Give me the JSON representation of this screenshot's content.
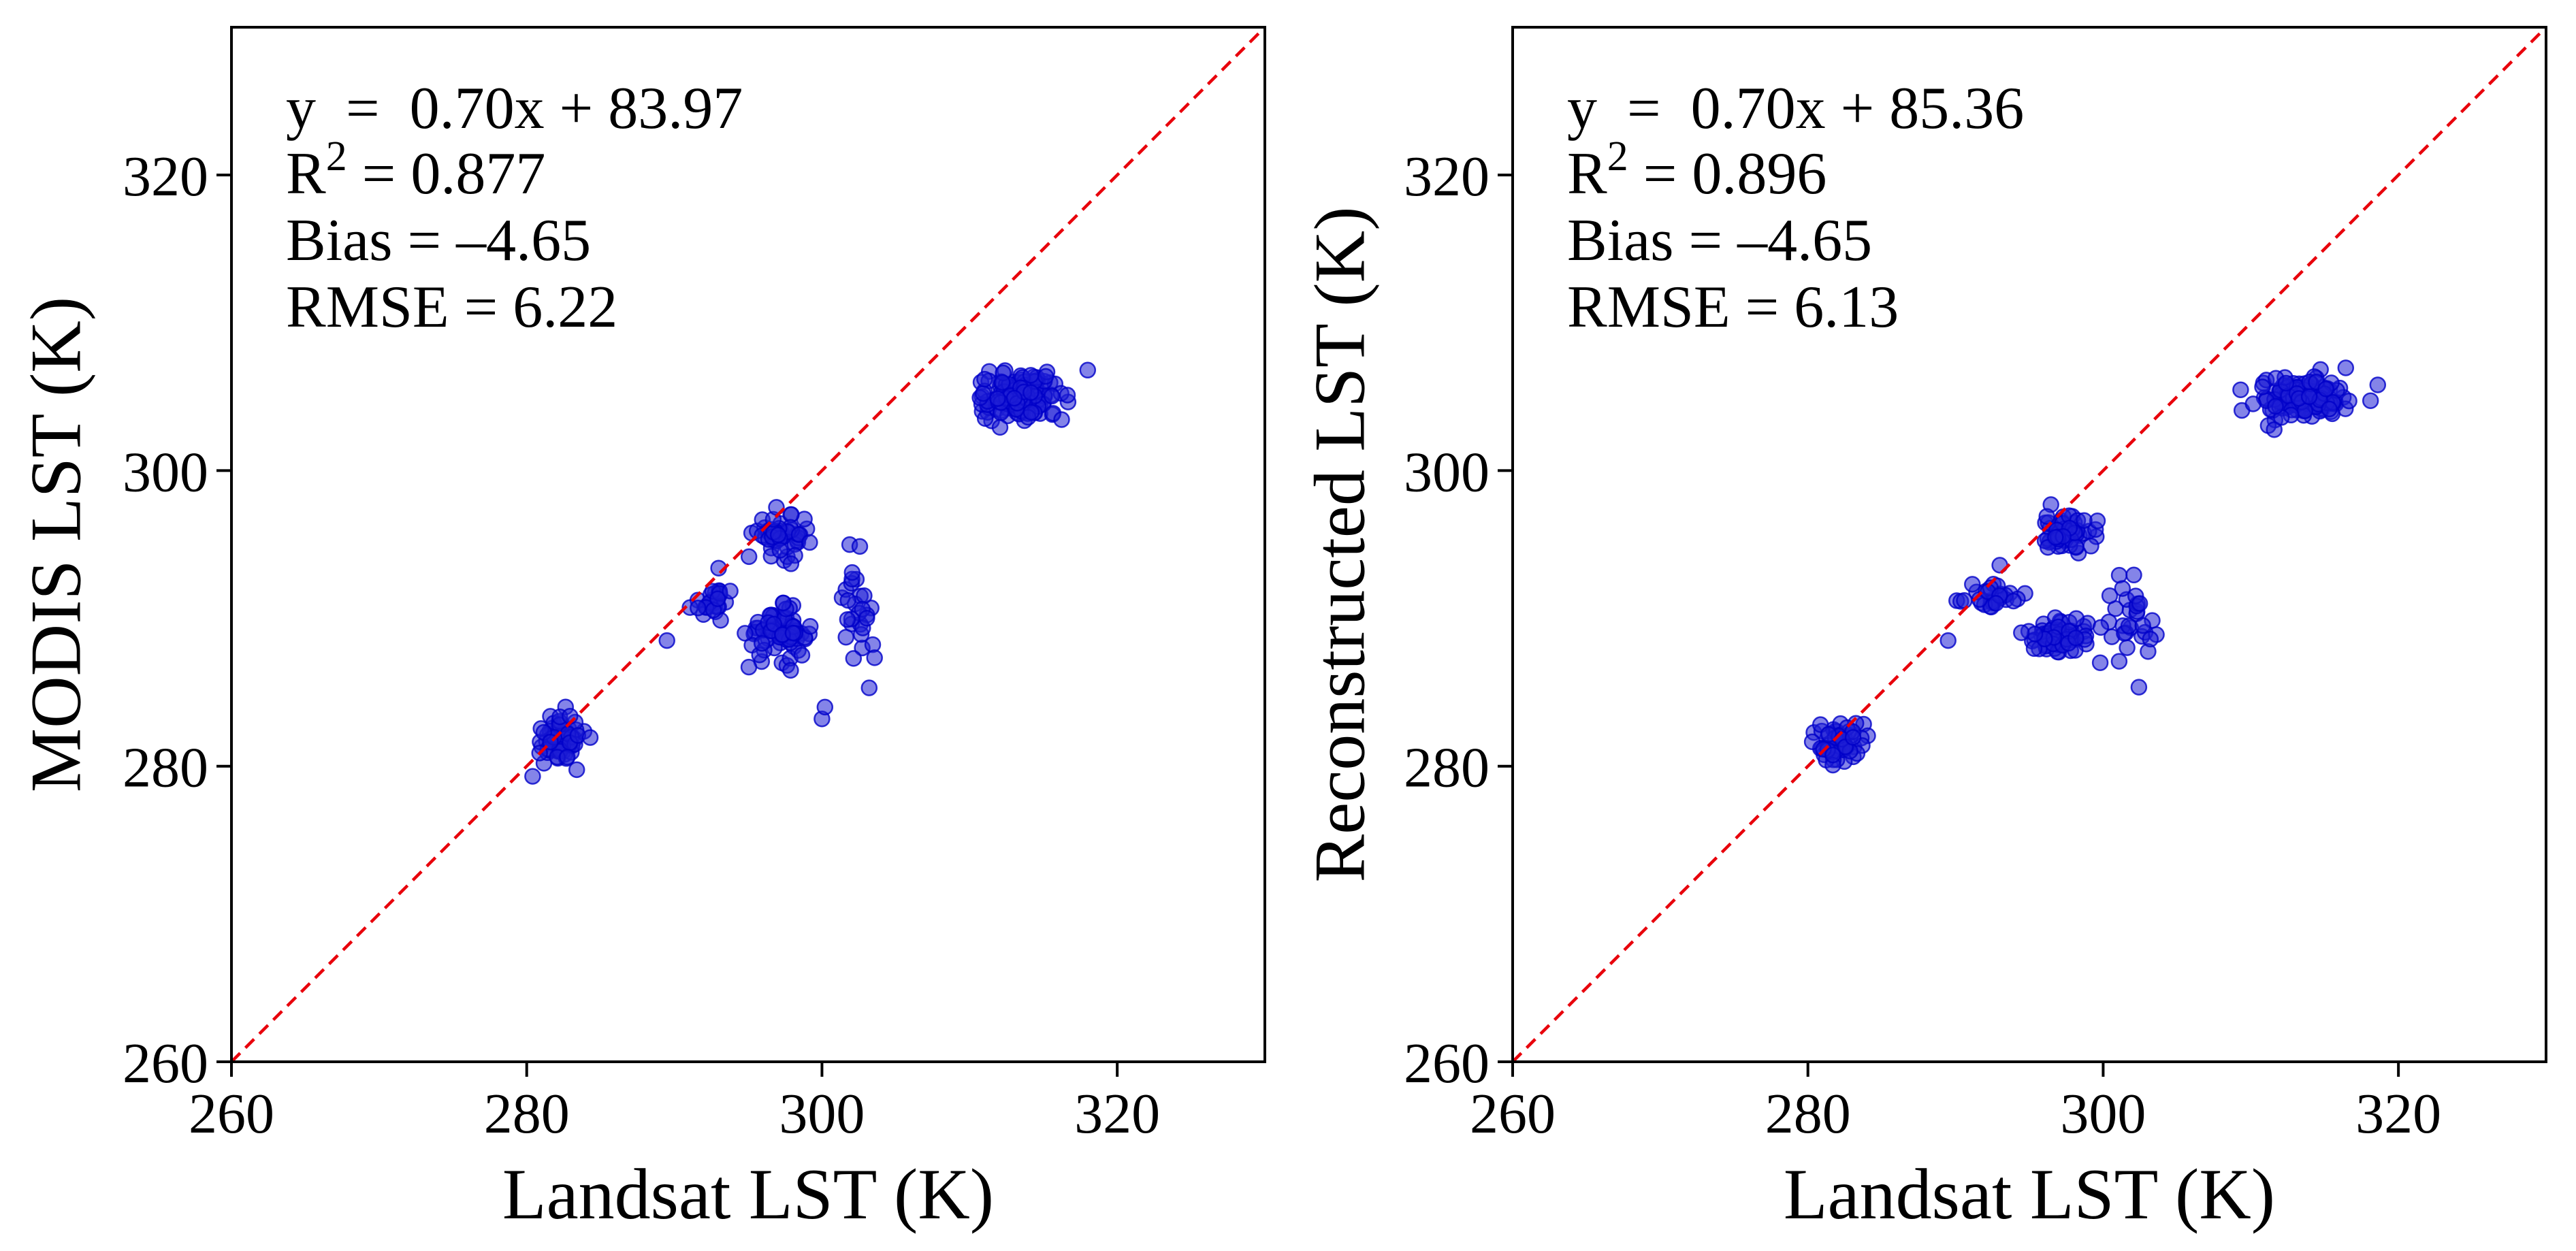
{
  "chart_data": [
    {
      "type": "scatter",
      "xlabel": "Landsat LST (K)",
      "ylabel": "MODIS LST (K)",
      "xlim": [
        260,
        330
      ],
      "ylim": [
        260,
        330
      ],
      "xticks": [
        "260",
        "280",
        "300",
        "320"
      ],
      "yticks": [
        "260",
        "280",
        "300",
        "320"
      ],
      "reference_line": "1:1",
      "stats": {
        "equation": "y  =  0.70x + 83.97",
        "r2_label": "R",
        "r2_sup": "2",
        "r2_value": " = 0.877",
        "bias": "Bias = –4.65",
        "rmse": "RMSE = 6.22"
      },
      "clusters": [
        {
          "cx": 282.2,
          "cy": 281.8,
          "sx": 0.9,
          "sy": 0.9,
          "n": 60
        },
        {
          "cx": 292.7,
          "cy": 291.2,
          "sx": 0.8,
          "sy": 0.5,
          "n": 28
        },
        {
          "cx": 297.4,
          "cy": 295.6,
          "sx": 0.9,
          "sy": 0.7,
          "n": 55
        },
        {
          "cx": 297.0,
          "cy": 289.0,
          "sx": 1.0,
          "sy": 0.8,
          "n": 70
        },
        {
          "cx": 302.5,
          "cy": 290.5,
          "sx": 0.8,
          "sy": 2.0,
          "n": 28
        },
        {
          "cx": 313.4,
          "cy": 305.0,
          "sx": 1.5,
          "sy": 0.8,
          "n": 130
        }
      ],
      "outliers": [
        [
          300.0,
          283.2
        ],
        [
          300.2,
          284.0
        ],
        [
          289.5,
          288.5
        ],
        [
          303.2,
          285.3
        ],
        [
          293.0,
          293.4
        ],
        [
          318.0,
          306.8
        ]
      ]
    },
    {
      "type": "scatter",
      "xlabel": "Landsat LST (K)",
      "ylabel": "Reconstructed LST (K)",
      "xlim": [
        260,
        330
      ],
      "ylim": [
        260,
        330
      ],
      "xticks": [
        "260",
        "280",
        "300",
        "320"
      ],
      "yticks": [
        "260",
        "280",
        "300",
        "320"
      ],
      "reference_line": "1:1",
      "stats": {
        "equation": "y  =  0.70x + 85.36",
        "r2_label": "R",
        "r2_sup": "2",
        "r2_value": " = 0.896",
        "bias": "Bias = –4.65",
        "rmse": "RMSE = 6.13"
      },
      "clusters": [
        {
          "cx": 282.2,
          "cy": 281.7,
          "sx": 0.8,
          "sy": 0.7,
          "n": 55
        },
        {
          "cx": 292.7,
          "cy": 291.4,
          "sx": 0.9,
          "sy": 0.4,
          "n": 30
        },
        {
          "cx": 297.4,
          "cy": 295.8,
          "sx": 0.9,
          "sy": 0.6,
          "n": 55
        },
        {
          "cx": 297.0,
          "cy": 288.8,
          "sx": 1.0,
          "sy": 0.6,
          "n": 70
        },
        {
          "cx": 301.5,
          "cy": 290.2,
          "sx": 1.1,
          "sy": 1.6,
          "n": 30
        },
        {
          "cx": 313.4,
          "cy": 305.0,
          "sx": 1.5,
          "sy": 0.8,
          "n": 130
        }
      ],
      "outliers": [
        [
          289.5,
          288.5
        ],
        [
          299.8,
          287.0
        ],
        [
          303.2,
          288.6
        ],
        [
          293.0,
          293.6
        ],
        [
          318.6,
          305.8
        ]
      ]
    }
  ],
  "colors": {
    "point": "#1f1fd6",
    "point_edge": "#0000c8",
    "reference": "#e8000b",
    "axis": "#000000"
  }
}
